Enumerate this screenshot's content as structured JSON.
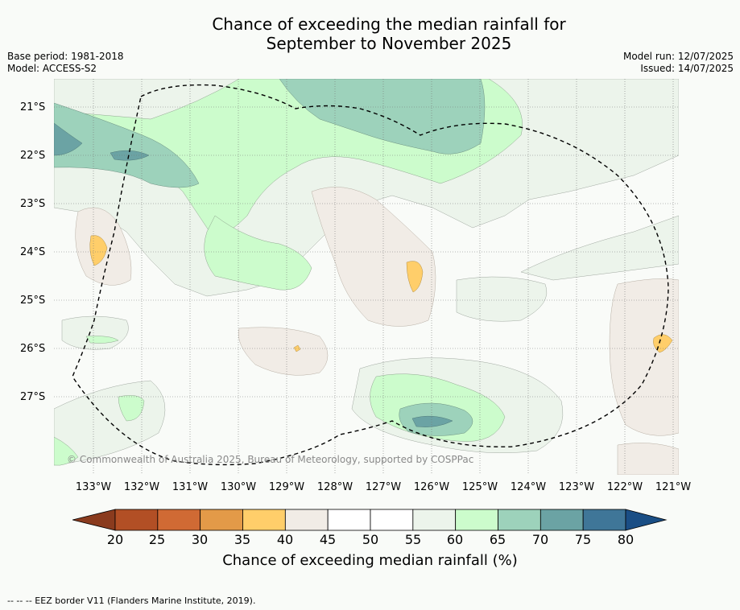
{
  "title_line1": "Chance of exceeding the median rainfall for",
  "title_line2": "September to November 2025",
  "meta_left": {
    "base_period": "Base period: 1981-2018",
    "model": "Model: ACCESS-S2"
  },
  "meta_right": {
    "model_run": "Model run: 12/07/2025",
    "issued": "Issued: 14/07/2025"
  },
  "lat_labels": [
    "21°S",
    "22°S",
    "23°S",
    "24°S",
    "25°S",
    "26°S",
    "27°S"
  ],
  "lon_labels": [
    "133°W",
    "132°W",
    "131°W",
    "130°W",
    "129°W",
    "128°W",
    "127°W",
    "126°W",
    "125°W",
    "124°W",
    "123°W",
    "122°W",
    "121°W"
  ],
  "colorbar": {
    "ticks": [
      "20",
      "25",
      "30",
      "35",
      "40",
      "45",
      "50",
      "55",
      "60",
      "65",
      "70",
      "75",
      "80"
    ],
    "under_color": "#8a3b1e",
    "over_color": "#1a4e85",
    "colors": [
      "#b24f25",
      "#d06a34",
      "#e39a48",
      "#ffce6a",
      "#f1ece6",
      "#ffffff",
      "#ffffff",
      "#ecf4eb",
      "#ccfccc",
      "#9dd2bb",
      "#6ba3a4",
      "#3f7698"
    ],
    "label": "Chance of exceeding median rainfall (%)"
  },
  "copyright": "© Commonwealth of Australia 2025, Bureau of Meteorology, supported by COSPPac",
  "footer": "--  --  -- EEZ border V11 (Flanders Marine Institute, 2019).",
  "colors": {
    "background": "#f9fbf8",
    "eez_border": "#000000"
  }
}
